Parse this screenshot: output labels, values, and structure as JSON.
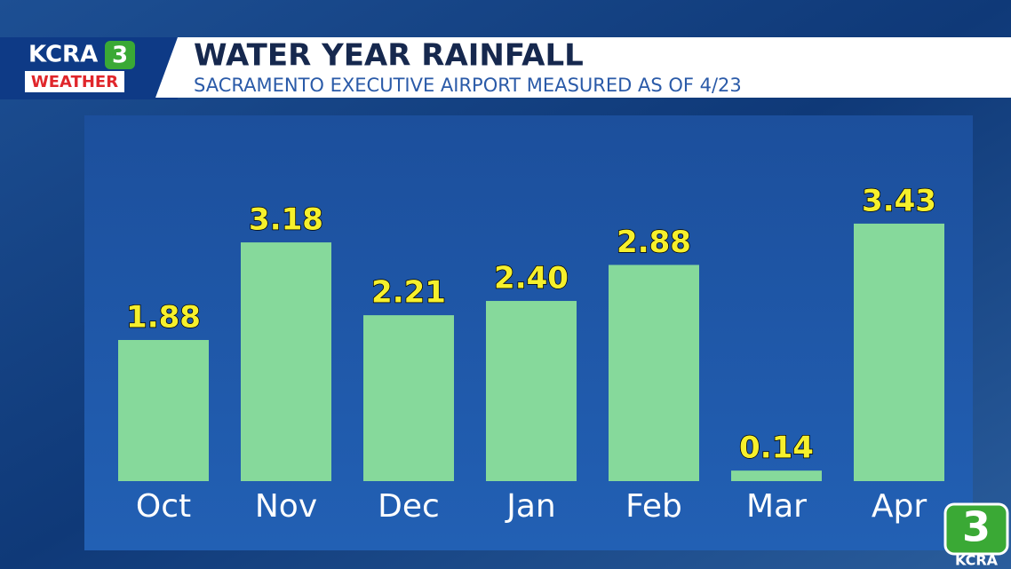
{
  "chart_data": {
    "type": "bar",
    "title": "WATER YEAR RAINFALL",
    "subtitle": "SACRAMENTO EXECUTIVE AIRPORT MEASURED AS OF 4/23",
    "categories": [
      "Oct",
      "Nov",
      "Dec",
      "Jan",
      "Feb",
      "Mar",
      "Apr"
    ],
    "values": [
      1.88,
      3.18,
      2.21,
      2.4,
      2.88,
      0.14,
      3.43
    ],
    "value_labels": [
      "1.88",
      "3.18",
      "2.21",
      "2.40",
      "2.88",
      "0.14",
      "3.43"
    ],
    "color": "#86d99b",
    "label_color": "#f6f02c",
    "ylim": [
      0,
      3.5
    ]
  },
  "branding": {
    "station": "KCRA",
    "channel": "3",
    "segment": "WEATHER",
    "corner_channel": "3",
    "corner_station": "KCRA"
  }
}
